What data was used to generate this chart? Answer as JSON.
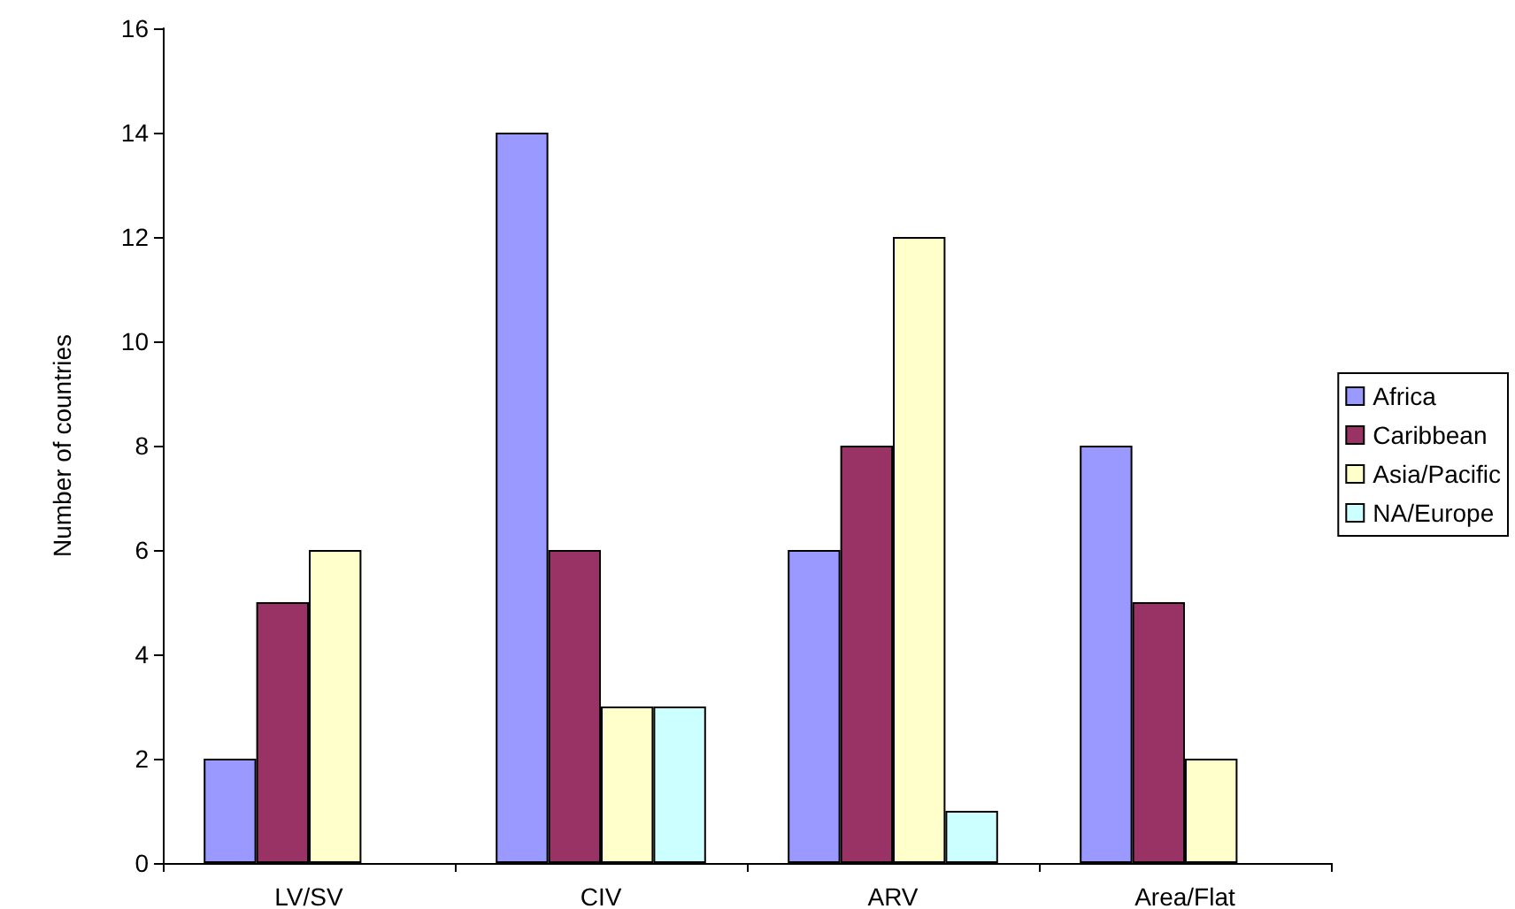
{
  "chart_data": {
    "type": "bar",
    "ylabel": "Number of countries",
    "categories": [
      "LV/SV",
      "CIV",
      "ARV",
      "Area/Flat"
    ],
    "series": [
      {
        "name": "Africa",
        "color": "#9999ff",
        "values": [
          2,
          14,
          6,
          8
        ]
      },
      {
        "name": "Caribbean",
        "color": "#993366",
        "values": [
          5,
          6,
          8,
          5
        ]
      },
      {
        "name": "Asia/Pacific",
        "color": "#ffffcc",
        "values": [
          6,
          3,
          12,
          2
        ]
      },
      {
        "name": "NA/Europe",
        "color": "#ccffff",
        "values": [
          null,
          3,
          1,
          null
        ]
      }
    ],
    "ylim": [
      0,
      16
    ],
    "yticks": [
      0,
      2,
      4,
      6,
      8,
      10,
      12,
      14,
      16
    ],
    "grid": false,
    "legend": "right"
  }
}
